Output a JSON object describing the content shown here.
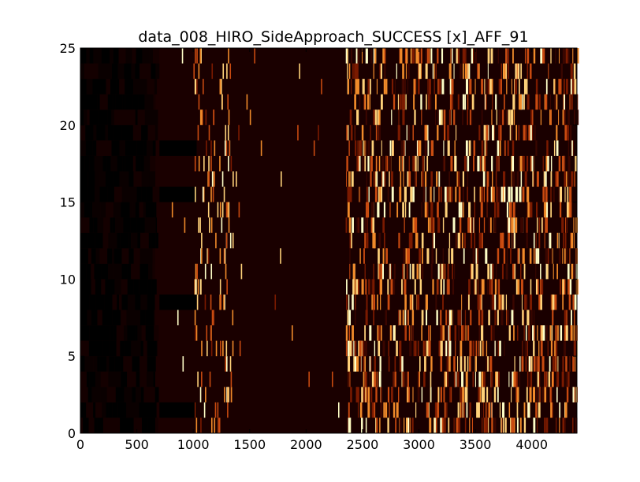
{
  "chart_data": {
    "type": "heatmap",
    "title": "data_008_HIRO_SideApproach_SUCCESS [x]_AFF_91",
    "xlabel": "",
    "ylabel": "",
    "xlim": [
      0,
      4400
    ],
    "ylim": [
      0,
      25
    ],
    "x_ticks": [
      "0",
      "500",
      "1000",
      "1500",
      "2000",
      "2500",
      "3000",
      "3500",
      "4000"
    ],
    "y_ticks": [
      "0",
      "5",
      "10",
      "15",
      "20",
      "25"
    ],
    "rows": 25,
    "colormap": "afmhot",
    "background_color": "#1a0000",
    "dark_block_color": "#000000",
    "bright_color": "#ffffc0",
    "grid": false,
    "legend": "none"
  }
}
